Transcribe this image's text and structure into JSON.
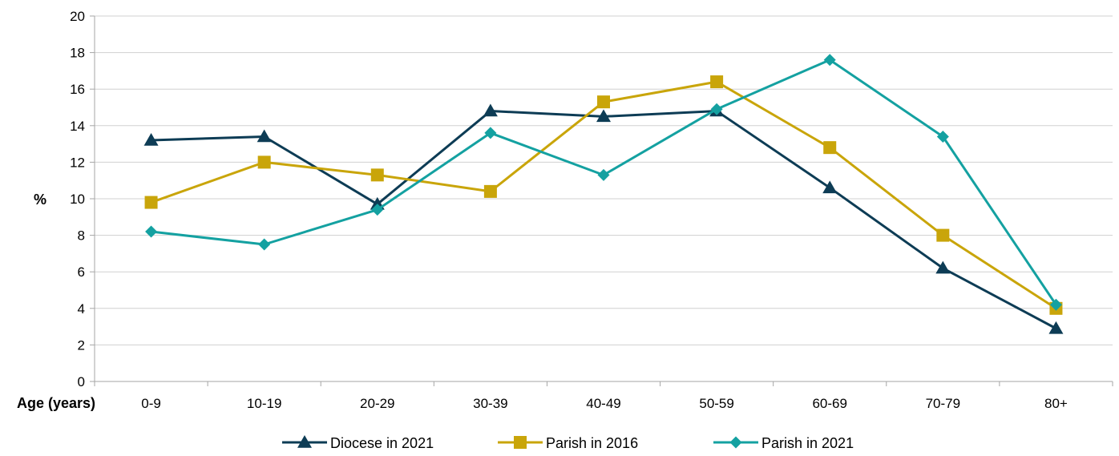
{
  "chart_data": {
    "type": "line",
    "title": "",
    "xlabel": "Age (years)",
    "ylabel": "%",
    "categories": [
      "0-9",
      "10-19",
      "20-29",
      "30-39",
      "40-49",
      "50-59",
      "60-69",
      "70-79",
      "80+"
    ],
    "ylim": [
      0,
      20
    ],
    "yticks": [
      0,
      2,
      4,
      6,
      8,
      10,
      12,
      14,
      16,
      18,
      20
    ],
    "grid": true,
    "legend": "bottom",
    "series": [
      {
        "name": "Diocese in 2021",
        "marker": "triangle",
        "color": "#0d3c55",
        "values": [
          13.2,
          13.4,
          9.7,
          14.8,
          14.5,
          14.8,
          10.6,
          6.2,
          2.9
        ]
      },
      {
        "name": "Parish in 2016",
        "marker": "square",
        "color": "#c9a50a",
        "values": [
          9.8,
          12.0,
          11.3,
          10.4,
          15.3,
          16.4,
          12.8,
          8.0,
          4.0
        ]
      },
      {
        "name": "Parish in 2021",
        "marker": "diamond",
        "color": "#14a1a1",
        "values": [
          8.2,
          7.5,
          9.4,
          13.6,
          11.3,
          14.9,
          17.6,
          13.4,
          4.2
        ]
      }
    ]
  }
}
